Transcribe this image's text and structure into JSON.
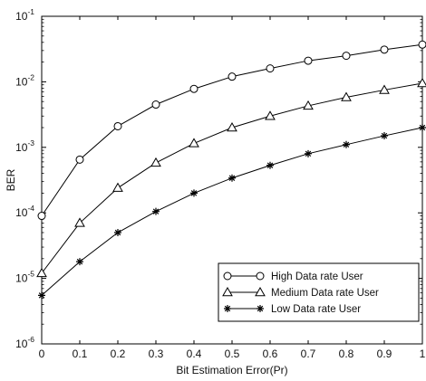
{
  "chart_data": {
    "type": "line",
    "title": "",
    "xlabel": "Bit Estimation Error(Pr)",
    "ylabel": "BER",
    "xlim": [
      0,
      1
    ],
    "ylim": [
      1e-06,
      0.1
    ],
    "yscale": "log",
    "grid": false,
    "legend_position": "bottom-right",
    "x": [
      0,
      0.1,
      0.2,
      0.3,
      0.4,
      0.5,
      0.6,
      0.7,
      0.8,
      0.9,
      1.0
    ],
    "x_tick_labels": [
      "0",
      "0.1",
      "0.2",
      "0.3",
      "0.4",
      "0.5",
      "0.6",
      "0.7",
      "0.8",
      "0.9",
      "1"
    ],
    "y_ticks": [
      {
        "value": 1e-06,
        "base": "10",
        "exp": "-6"
      },
      {
        "value": 1e-05,
        "base": "10",
        "exp": "-5"
      },
      {
        "value": 0.0001,
        "base": "10",
        "exp": "-4"
      },
      {
        "value": 0.001,
        "base": "10",
        "exp": "-3"
      },
      {
        "value": 0.01,
        "base": "10",
        "exp": "-2"
      },
      {
        "value": 0.1,
        "base": "10",
        "exp": "-1"
      }
    ],
    "series": [
      {
        "name": "High Data rate User",
        "marker": "circle",
        "values": [
          9e-05,
          0.00065,
          0.0021,
          0.0045,
          0.0078,
          0.012,
          0.016,
          0.021,
          0.025,
          0.031,
          0.037
        ]
      },
      {
        "name": "Medium Data rate User",
        "marker": "triangle",
        "values": [
          1.2e-05,
          7e-05,
          0.00024,
          0.00058,
          0.00115,
          0.002,
          0.003,
          0.0043,
          0.0058,
          0.0075,
          0.0095
        ]
      },
      {
        "name": "Low Data rate User",
        "marker": "star",
        "values": [
          5.5e-06,
          1.8e-05,
          5e-05,
          0.000105,
          0.0002,
          0.00034,
          0.00053,
          0.0008,
          0.0011,
          0.0015,
          0.002
        ]
      }
    ]
  }
}
